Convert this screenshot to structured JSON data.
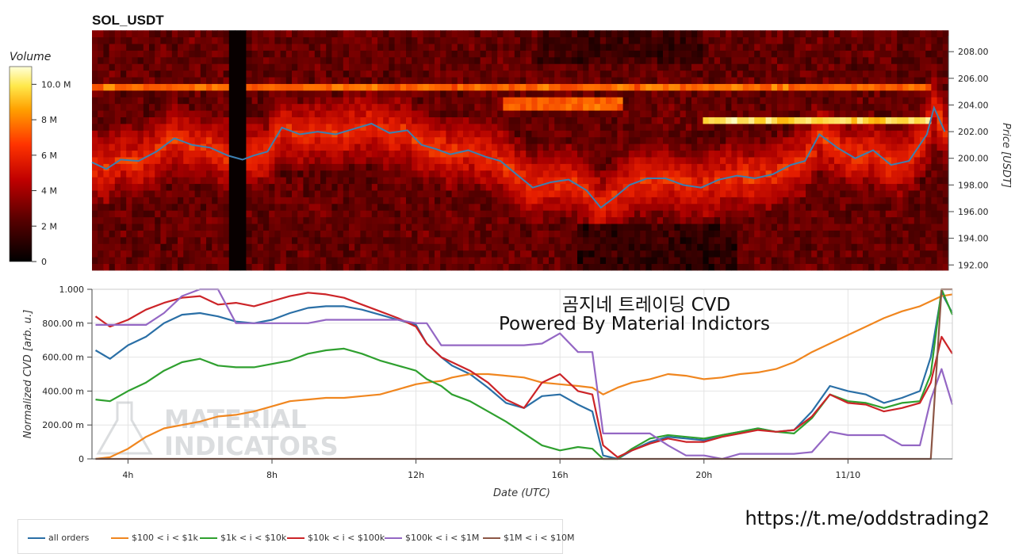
{
  "title": "SOL_USDT",
  "overlay": {
    "line1": "곰지네 트레이딩 CVD",
    "line2": "Powered By Material Indictors"
  },
  "watermark": {
    "line1": "MATERIAL",
    "line2": "INDICATORS"
  },
  "url": "https://t.me/oddstrading2",
  "colors": {
    "all_orders": "#2a6fa6",
    "s100_1k": "#f0861f",
    "s1k_10k": "#2fa02f",
    "s10k_100k": "#cc2428",
    "s100k_1M": "#9467c4",
    "s1M_10M": "#8c5645",
    "price_line": "#3d7fb0"
  },
  "legend": [
    {
      "label": "all orders",
      "color_key": "all_orders"
    },
    {
      "label": "$100 < i < $1k",
      "color_key": "s100_1k"
    },
    {
      "label": "$1k < i < $10k",
      "color_key": "s1k_10k"
    },
    {
      "label": "$10k < i < $100k",
      "color_key": "s10k_100k"
    },
    {
      "label": "$100k < i < $1M",
      "color_key": "s100k_1M"
    },
    {
      "label": "$1M < i < $10M",
      "color_key": "s1M_10M"
    }
  ],
  "chart_data": [
    {
      "type": "heatmap",
      "title": "SOL_USDT",
      "colorbar_title": "Volume",
      "colorbar_ticks": [
        "10.0 M",
        "8 M",
        "6 M",
        "4 M",
        "2 M",
        "0"
      ],
      "colorbar_values": [
        10000000,
        8000000,
        6000000,
        4000000,
        2000000,
        0
      ],
      "ylabel": "Price [USDT]",
      "ylim": [
        191.6,
        209.2
      ],
      "yticks": [
        "208.00",
        "206.00",
        "204.00",
        "202.00",
        "200.00",
        "198.00",
        "196.00",
        "194.00",
        "192.00"
      ],
      "ytick_values": [
        208,
        206,
        204,
        202,
        200,
        198,
        196,
        194,
        192
      ],
      "xlim_hours": [
        3.0,
        26.9
      ],
      "price_series": {
        "name": "",
        "x_hours": [
          3.0,
          3.4,
          3.8,
          4.3,
          4.8,
          5.3,
          5.8,
          6.3,
          6.8,
          7.2,
          7.5,
          7.9,
          8.3,
          8.8,
          9.3,
          9.8,
          10.3,
          10.8,
          11.3,
          11.8,
          12.2,
          12.6,
          13.0,
          13.5,
          14.0,
          14.4,
          14.8,
          15.3,
          15.8,
          16.3,
          16.8,
          17.2,
          17.6,
          18.0,
          18.5,
          19.0,
          19.5,
          20.0,
          20.5,
          21.0,
          21.5,
          22.0,
          22.5,
          22.9,
          23.3,
          23.8,
          24.3,
          24.8,
          25.3,
          25.8,
          26.3,
          26.5,
          26.8
        ],
        "values": [
          199.7,
          199.2,
          199.9,
          199.8,
          200.5,
          201.5,
          201.0,
          200.8,
          200.2,
          199.9,
          200.2,
          200.5,
          202.3,
          201.8,
          202.0,
          201.8,
          202.2,
          202.6,
          201.9,
          202.1,
          201.0,
          200.7,
          200.3,
          200.6,
          200.1,
          199.8,
          198.9,
          197.8,
          198.2,
          198.4,
          197.6,
          196.3,
          197.1,
          198.0,
          198.5,
          198.5,
          198.0,
          197.8,
          198.4,
          198.7,
          198.5,
          198.8,
          199.5,
          199.8,
          201.8,
          200.8,
          200.0,
          200.6,
          199.5,
          199.8,
          201.8,
          203.8,
          202.0
        ]
      }
    },
    {
      "type": "line",
      "xlabel": "Date (UTC)",
      "ylabel": "Normalized CVD [arb. u.]",
      "xticks": [
        "4h",
        "8h",
        "12h",
        "16h",
        "20h",
        "11/10"
      ],
      "xtick_hours": [
        4,
        8,
        12,
        16,
        20,
        24
      ],
      "xlim_hours": [
        3.0,
        26.9
      ],
      "yticks": [
        "1.000",
        "800.00 m",
        "600.00 m",
        "400.00 m",
        "200.00 m",
        "0"
      ],
      "ytick_values": [
        1.0,
        0.8,
        0.6,
        0.4,
        0.2,
        0
      ],
      "ylim": [
        0,
        1.0
      ],
      "x_hours": [
        3.1,
        3.5,
        4.0,
        4.5,
        5.0,
        5.5,
        6.0,
        6.5,
        7.0,
        7.5,
        8.0,
        8.5,
        9.0,
        9.5,
        10.0,
        10.5,
        11.0,
        11.5,
        12.0,
        12.3,
        12.7,
        13.0,
        13.5,
        14.0,
        14.5,
        15.0,
        15.5,
        16.0,
        16.5,
        16.9,
        17.2,
        17.6,
        18.0,
        18.5,
        19.0,
        19.5,
        20.0,
        20.5,
        21.0,
        21.5,
        22.0,
        22.5,
        23.0,
        23.5,
        24.0,
        24.5,
        25.0,
        25.5,
        26.0,
        26.3,
        26.6,
        26.9
      ],
      "series": [
        {
          "name": "all orders",
          "color_key": "all_orders",
          "values": [
            0.64,
            0.59,
            0.67,
            0.72,
            0.8,
            0.85,
            0.86,
            0.84,
            0.81,
            0.8,
            0.82,
            0.86,
            0.89,
            0.9,
            0.9,
            0.88,
            0.85,
            0.82,
            0.79,
            0.68,
            0.6,
            0.55,
            0.5,
            0.42,
            0.33,
            0.3,
            0.37,
            0.38,
            0.32,
            0.28,
            0.02,
            0.0,
            0.05,
            0.1,
            0.13,
            0.12,
            0.11,
            0.14,
            0.16,
            0.18,
            0.16,
            0.17,
            0.28,
            0.43,
            0.4,
            0.38,
            0.33,
            0.36,
            0.4,
            0.6,
            0.98,
            0.86
          ]
        },
        {
          "name": "$100 < i < $1k",
          "color_key": "s100_1k",
          "values": [
            0.0,
            0.01,
            0.06,
            0.13,
            0.18,
            0.2,
            0.22,
            0.25,
            0.26,
            0.28,
            0.31,
            0.34,
            0.35,
            0.36,
            0.36,
            0.37,
            0.38,
            0.41,
            0.44,
            0.45,
            0.46,
            0.48,
            0.5,
            0.5,
            0.49,
            0.48,
            0.45,
            0.44,
            0.43,
            0.42,
            0.38,
            0.42,
            0.45,
            0.47,
            0.5,
            0.49,
            0.47,
            0.48,
            0.5,
            0.51,
            0.53,
            0.57,
            0.63,
            0.68,
            0.73,
            0.78,
            0.83,
            0.87,
            0.9,
            0.93,
            0.96,
            0.97
          ]
        },
        {
          "name": "$1k < i < $10k",
          "color_key": "s1k_10k",
          "values": [
            0.35,
            0.34,
            0.4,
            0.45,
            0.52,
            0.57,
            0.59,
            0.55,
            0.54,
            0.54,
            0.56,
            0.58,
            0.62,
            0.64,
            0.65,
            0.62,
            0.58,
            0.55,
            0.52,
            0.47,
            0.43,
            0.38,
            0.34,
            0.28,
            0.22,
            0.15,
            0.08,
            0.05,
            0.07,
            0.06,
            0.0,
            0.0,
            0.06,
            0.12,
            0.14,
            0.13,
            0.12,
            0.14,
            0.16,
            0.18,
            0.16,
            0.15,
            0.24,
            0.38,
            0.34,
            0.33,
            0.3,
            0.33,
            0.34,
            0.5,
            1.0,
            0.85
          ]
        },
        {
          "name": "$10k < i < $100k",
          "color_key": "s10k_100k",
          "values": [
            0.84,
            0.78,
            0.82,
            0.88,
            0.92,
            0.95,
            0.96,
            0.91,
            0.92,
            0.9,
            0.93,
            0.96,
            0.98,
            0.97,
            0.95,
            0.91,
            0.87,
            0.83,
            0.78,
            0.68,
            0.6,
            0.57,
            0.52,
            0.45,
            0.35,
            0.3,
            0.45,
            0.5,
            0.4,
            0.38,
            0.08,
            0.01,
            0.05,
            0.09,
            0.12,
            0.1,
            0.1,
            0.13,
            0.15,
            0.17,
            0.16,
            0.17,
            0.25,
            0.38,
            0.33,
            0.32,
            0.28,
            0.3,
            0.33,
            0.45,
            0.72,
            0.62
          ]
        },
        {
          "name": "$100k < i < $1M",
          "color_key": "s100k_1M",
          "values": [
            0.79,
            0.79,
            0.79,
            0.79,
            0.86,
            0.96,
            1.0,
            1.0,
            0.8,
            0.8,
            0.8,
            0.8,
            0.8,
            0.82,
            0.82,
            0.82,
            0.82,
            0.82,
            0.8,
            0.8,
            0.67,
            0.67,
            0.67,
            0.67,
            0.67,
            0.67,
            0.68,
            0.74,
            0.63,
            0.63,
            0.15,
            0.15,
            0.15,
            0.15,
            0.08,
            0.02,
            0.02,
            0.0,
            0.03,
            0.03,
            0.03,
            0.03,
            0.04,
            0.16,
            0.14,
            0.14,
            0.14,
            0.08,
            0.08,
            0.35,
            0.53,
            0.32
          ]
        },
        {
          "name": "$1M < i < $10M",
          "color_key": "s1M_10M",
          "values": [
            0.0,
            0.0,
            0.0,
            0.0,
            0.0,
            0.0,
            0.0,
            0.0,
            0.0,
            0.0,
            0.0,
            0.0,
            0.0,
            0.0,
            0.0,
            0.0,
            0.0,
            0.0,
            0.0,
            0.0,
            0.0,
            0.0,
            0.0,
            0.0,
            0.0,
            0.0,
            0.0,
            0.0,
            0.0,
            0.0,
            0.0,
            0.0,
            0.0,
            0.0,
            0.0,
            0.0,
            0.0,
            0.0,
            0.0,
            0.0,
            0.0,
            0.0,
            0.0,
            0.0,
            0.0,
            0.0,
            0.0,
            0.0,
            0.0,
            0.0,
            1.0,
            1.0
          ]
        }
      ]
    }
  ]
}
